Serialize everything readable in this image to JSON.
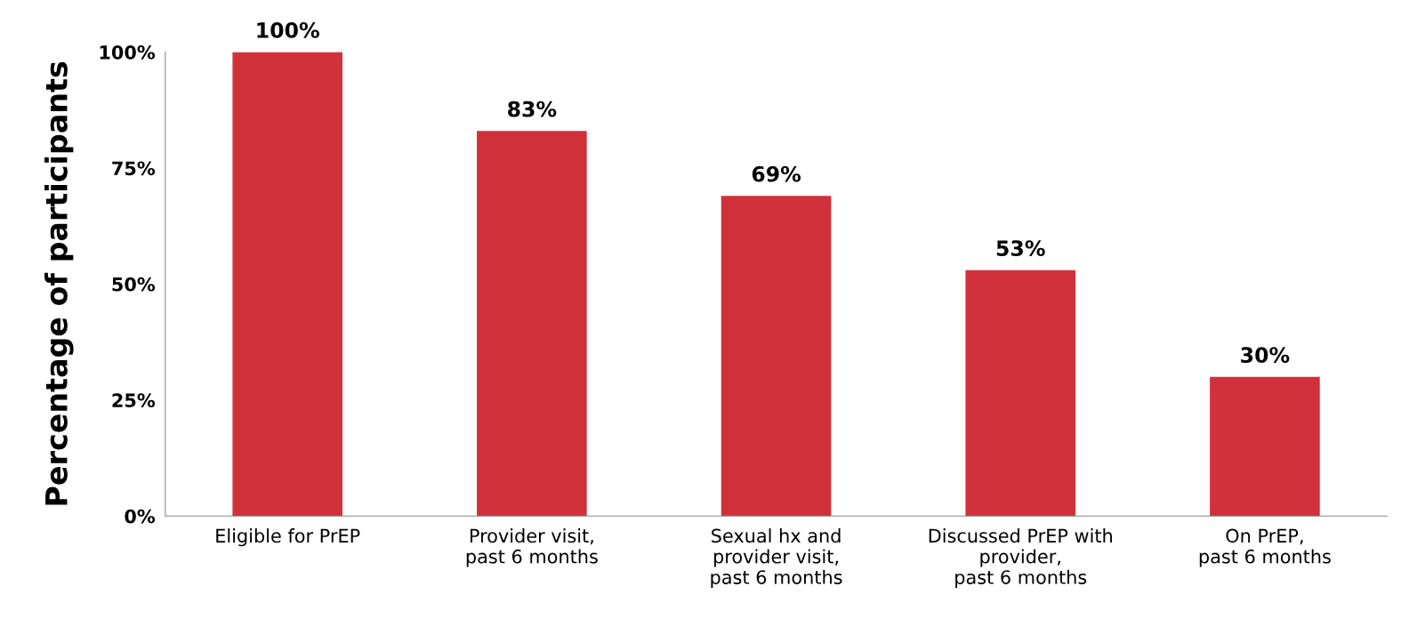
{
  "chart_data": {
    "type": "bar",
    "ylabel": "Percentage of participants",
    "categories": [
      "Eligible for PrEP",
      "Provider visit,\npast 6 months",
      "Sexual hx and\nprovider visit,\npast 6 months",
      "Discussed PrEP with\nprovider,\npast 6 months",
      "On PrEP,\npast 6 months"
    ],
    "values": [
      100,
      83,
      69,
      53,
      30
    ],
    "value_labels": [
      "100%",
      "83%",
      "69%",
      "53%",
      "30%"
    ],
    "color": "#d0313a",
    "ylim": [
      0,
      100
    ],
    "yticks": [
      {
        "value": 0,
        "label": "0%"
      },
      {
        "value": 25,
        "label": "25%"
      },
      {
        "value": 50,
        "label": "50%"
      },
      {
        "value": 75,
        "label": "75%"
      },
      {
        "value": 100,
        "label": "100%"
      }
    ],
    "grid": false
  }
}
